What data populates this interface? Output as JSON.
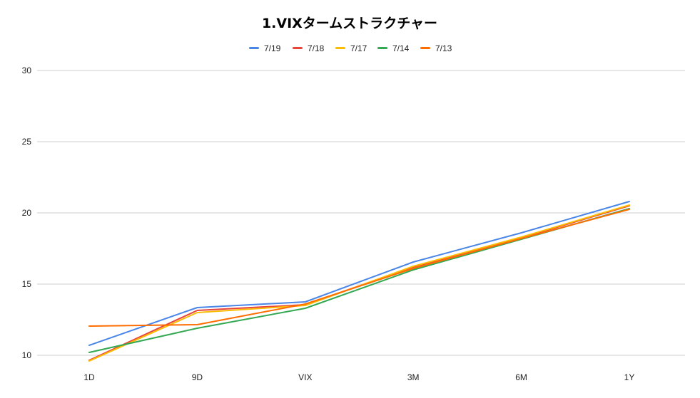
{
  "chart_data": {
    "type": "line",
    "title": "1.VIXタームストラクチャー",
    "xlabel": "",
    "ylabel": "",
    "categories": [
      "1D",
      "9D",
      "VIX",
      "3M",
      "6M",
      "1Y"
    ],
    "ylim": [
      10,
      30
    ],
    "yticks": [
      10,
      15,
      20,
      25,
      30
    ],
    "grid": true,
    "legend_position": "top",
    "series": [
      {
        "name": "7/19",
        "color": "#4a86e8",
        "values": [
          10.7,
          13.35,
          13.75,
          16.55,
          18.6,
          20.8
        ]
      },
      {
        "name": "7/18",
        "color": "#e8453c",
        "values": [
          9.65,
          13.15,
          13.55,
          16.2,
          18.25,
          20.5
        ]
      },
      {
        "name": "7/17",
        "color": "#fbbc04",
        "values": [
          9.6,
          13.0,
          13.5,
          16.25,
          18.3,
          20.55
        ]
      },
      {
        "name": "7/14",
        "color": "#34a853",
        "values": [
          10.2,
          11.9,
          13.3,
          16.0,
          18.15,
          20.3
        ]
      },
      {
        "name": "7/13",
        "color": "#ff6d01",
        "values": [
          12.05,
          12.15,
          13.6,
          16.1,
          18.2,
          20.25
        ]
      }
    ]
  }
}
